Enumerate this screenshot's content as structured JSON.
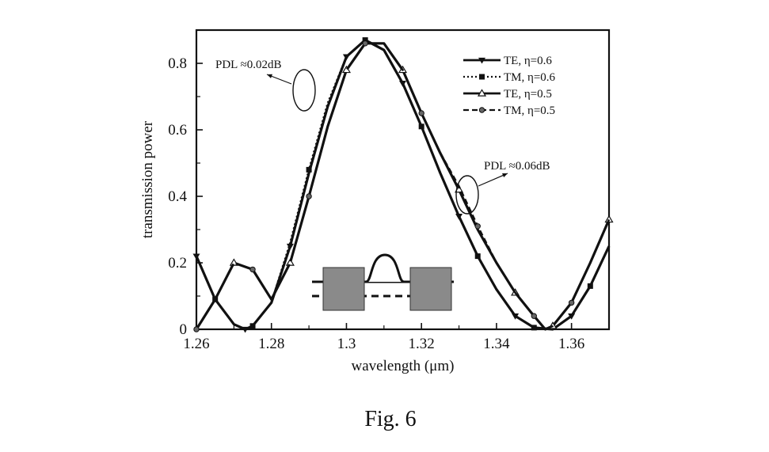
{
  "figure": {
    "caption": "Fig. 6"
  },
  "chart_data": {
    "type": "line",
    "title": "",
    "xlabel": "wavelength (μm)",
    "ylabel": "transmission power",
    "xlim": [
      1.26,
      1.37
    ],
    "ylim": [
      0,
      0.9
    ],
    "xticks": [
      1.26,
      1.28,
      1.3,
      1.32,
      1.34,
      1.36
    ],
    "xtick_labels": [
      "1.26",
      "1.28",
      "1.3",
      "1.32",
      "1.34",
      "1.36"
    ],
    "yticks": [
      0,
      0.2,
      0.4,
      0.6,
      0.8
    ],
    "ytick_labels": [
      "0",
      "0.2",
      "0.4",
      "0.6",
      "0.8"
    ],
    "grid": false,
    "legend_position": "top-right",
    "series": [
      {
        "name": "TE, η=0.6",
        "line_style": "solid",
        "marker": "triangle-down",
        "x": [
          1.26,
          1.265,
          1.27,
          1.273,
          1.275,
          1.28,
          1.285,
          1.29,
          1.295,
          1.3,
          1.305,
          1.31,
          1.315,
          1.32,
          1.325,
          1.33,
          1.335,
          1.34,
          1.345,
          1.35,
          1.355,
          1.36,
          1.365,
          1.37
        ],
        "y": [
          0.22,
          0.09,
          0.015,
          0.0,
          0.01,
          0.08,
          0.25,
          0.47,
          0.67,
          0.82,
          0.87,
          0.84,
          0.74,
          0.61,
          0.47,
          0.34,
          0.22,
          0.12,
          0.04,
          0.005,
          0.0,
          0.04,
          0.13,
          0.25
        ]
      },
      {
        "name": "TM, η=0.6",
        "line_style": "dotted",
        "marker": "square",
        "x": [
          1.26,
          1.265,
          1.27,
          1.273,
          1.275,
          1.28,
          1.285,
          1.29,
          1.295,
          1.3,
          1.305,
          1.31,
          1.315,
          1.32,
          1.325,
          1.33,
          1.335,
          1.34,
          1.345,
          1.35,
          1.355,
          1.36,
          1.365,
          1.37
        ],
        "y": [
          0.22,
          0.09,
          0.015,
          0.0,
          0.01,
          0.08,
          0.26,
          0.48,
          0.68,
          0.82,
          0.87,
          0.84,
          0.74,
          0.61,
          0.47,
          0.34,
          0.22,
          0.12,
          0.04,
          0.005,
          0.0,
          0.04,
          0.13,
          0.25
        ]
      },
      {
        "name": "TE,  η=0.5",
        "line_style": "solid",
        "marker": "triangle-up",
        "x": [
          1.26,
          1.265,
          1.27,
          1.275,
          1.28,
          1.285,
          1.29,
          1.295,
          1.3,
          1.305,
          1.31,
          1.315,
          1.32,
          1.325,
          1.33,
          1.335,
          1.34,
          1.345,
          1.35,
          1.353,
          1.355,
          1.36,
          1.365,
          1.37
        ],
        "y": [
          0.0,
          0.09,
          0.2,
          0.18,
          0.09,
          0.2,
          0.4,
          0.61,
          0.78,
          0.86,
          0.86,
          0.78,
          0.65,
          0.53,
          0.42,
          0.3,
          0.2,
          0.11,
          0.04,
          0.0,
          0.01,
          0.08,
          0.2,
          0.33
        ]
      },
      {
        "name": "TM,  η=0.5",
        "line_style": "dashed",
        "marker": "circle",
        "x": [
          1.26,
          1.265,
          1.27,
          1.275,
          1.28,
          1.285,
          1.29,
          1.295,
          1.3,
          1.305,
          1.31,
          1.315,
          1.32,
          1.325,
          1.33,
          1.335,
          1.34,
          1.345,
          1.35,
          1.353,
          1.355,
          1.36,
          1.365,
          1.37
        ],
        "y": [
          0.0,
          0.09,
          0.2,
          0.18,
          0.09,
          0.2,
          0.4,
          0.61,
          0.78,
          0.86,
          0.86,
          0.78,
          0.65,
          0.53,
          0.43,
          0.31,
          0.2,
          0.11,
          0.04,
          0.0,
          0.01,
          0.08,
          0.2,
          0.33
        ]
      }
    ],
    "annotations": [
      {
        "id": "pdl-left",
        "text": "PDL ≈0.02dB",
        "target_x": 1.289,
        "target_y": 0.72
      },
      {
        "id": "pdl-right",
        "text": "PDL ≈0.06dB",
        "target_x": 1.332,
        "target_y": 0.43
      }
    ]
  }
}
